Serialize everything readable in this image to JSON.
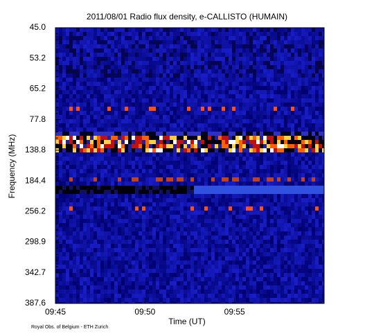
{
  "chart_data": {
    "type": "spectrogram",
    "title": "2011/08/01  Radio flux density, e-CALLISTO (HUMAIN)",
    "x_label": "Time (UT)",
    "y_label": "Frequency (MHz)",
    "xlim": [
      "09:45",
      "10:00"
    ],
    "xticks": [
      "09:45",
      "09:50",
      "09:55"
    ],
    "yticks": [
      {
        "value": 45.0,
        "label": "45.0"
      },
      {
        "value": 53.2,
        "label": "53.2"
      },
      {
        "value": 65.2,
        "label": "65.2"
      },
      {
        "value": 77.8,
        "label": "77.8"
      },
      {
        "value": 138.8,
        "label": "138.8"
      },
      {
        "value": 184.4,
        "label": "184.4"
      },
      {
        "value": 256.2,
        "label": "256.2"
      },
      {
        "value": 298.9,
        "label": "298.9"
      },
      {
        "value": 342.7,
        "label": "342.7"
      },
      {
        "value": 387.6,
        "label": "387.6"
      }
    ],
    "footer": "Royal Obs. of Belgium - ETH Zurich"
  }
}
